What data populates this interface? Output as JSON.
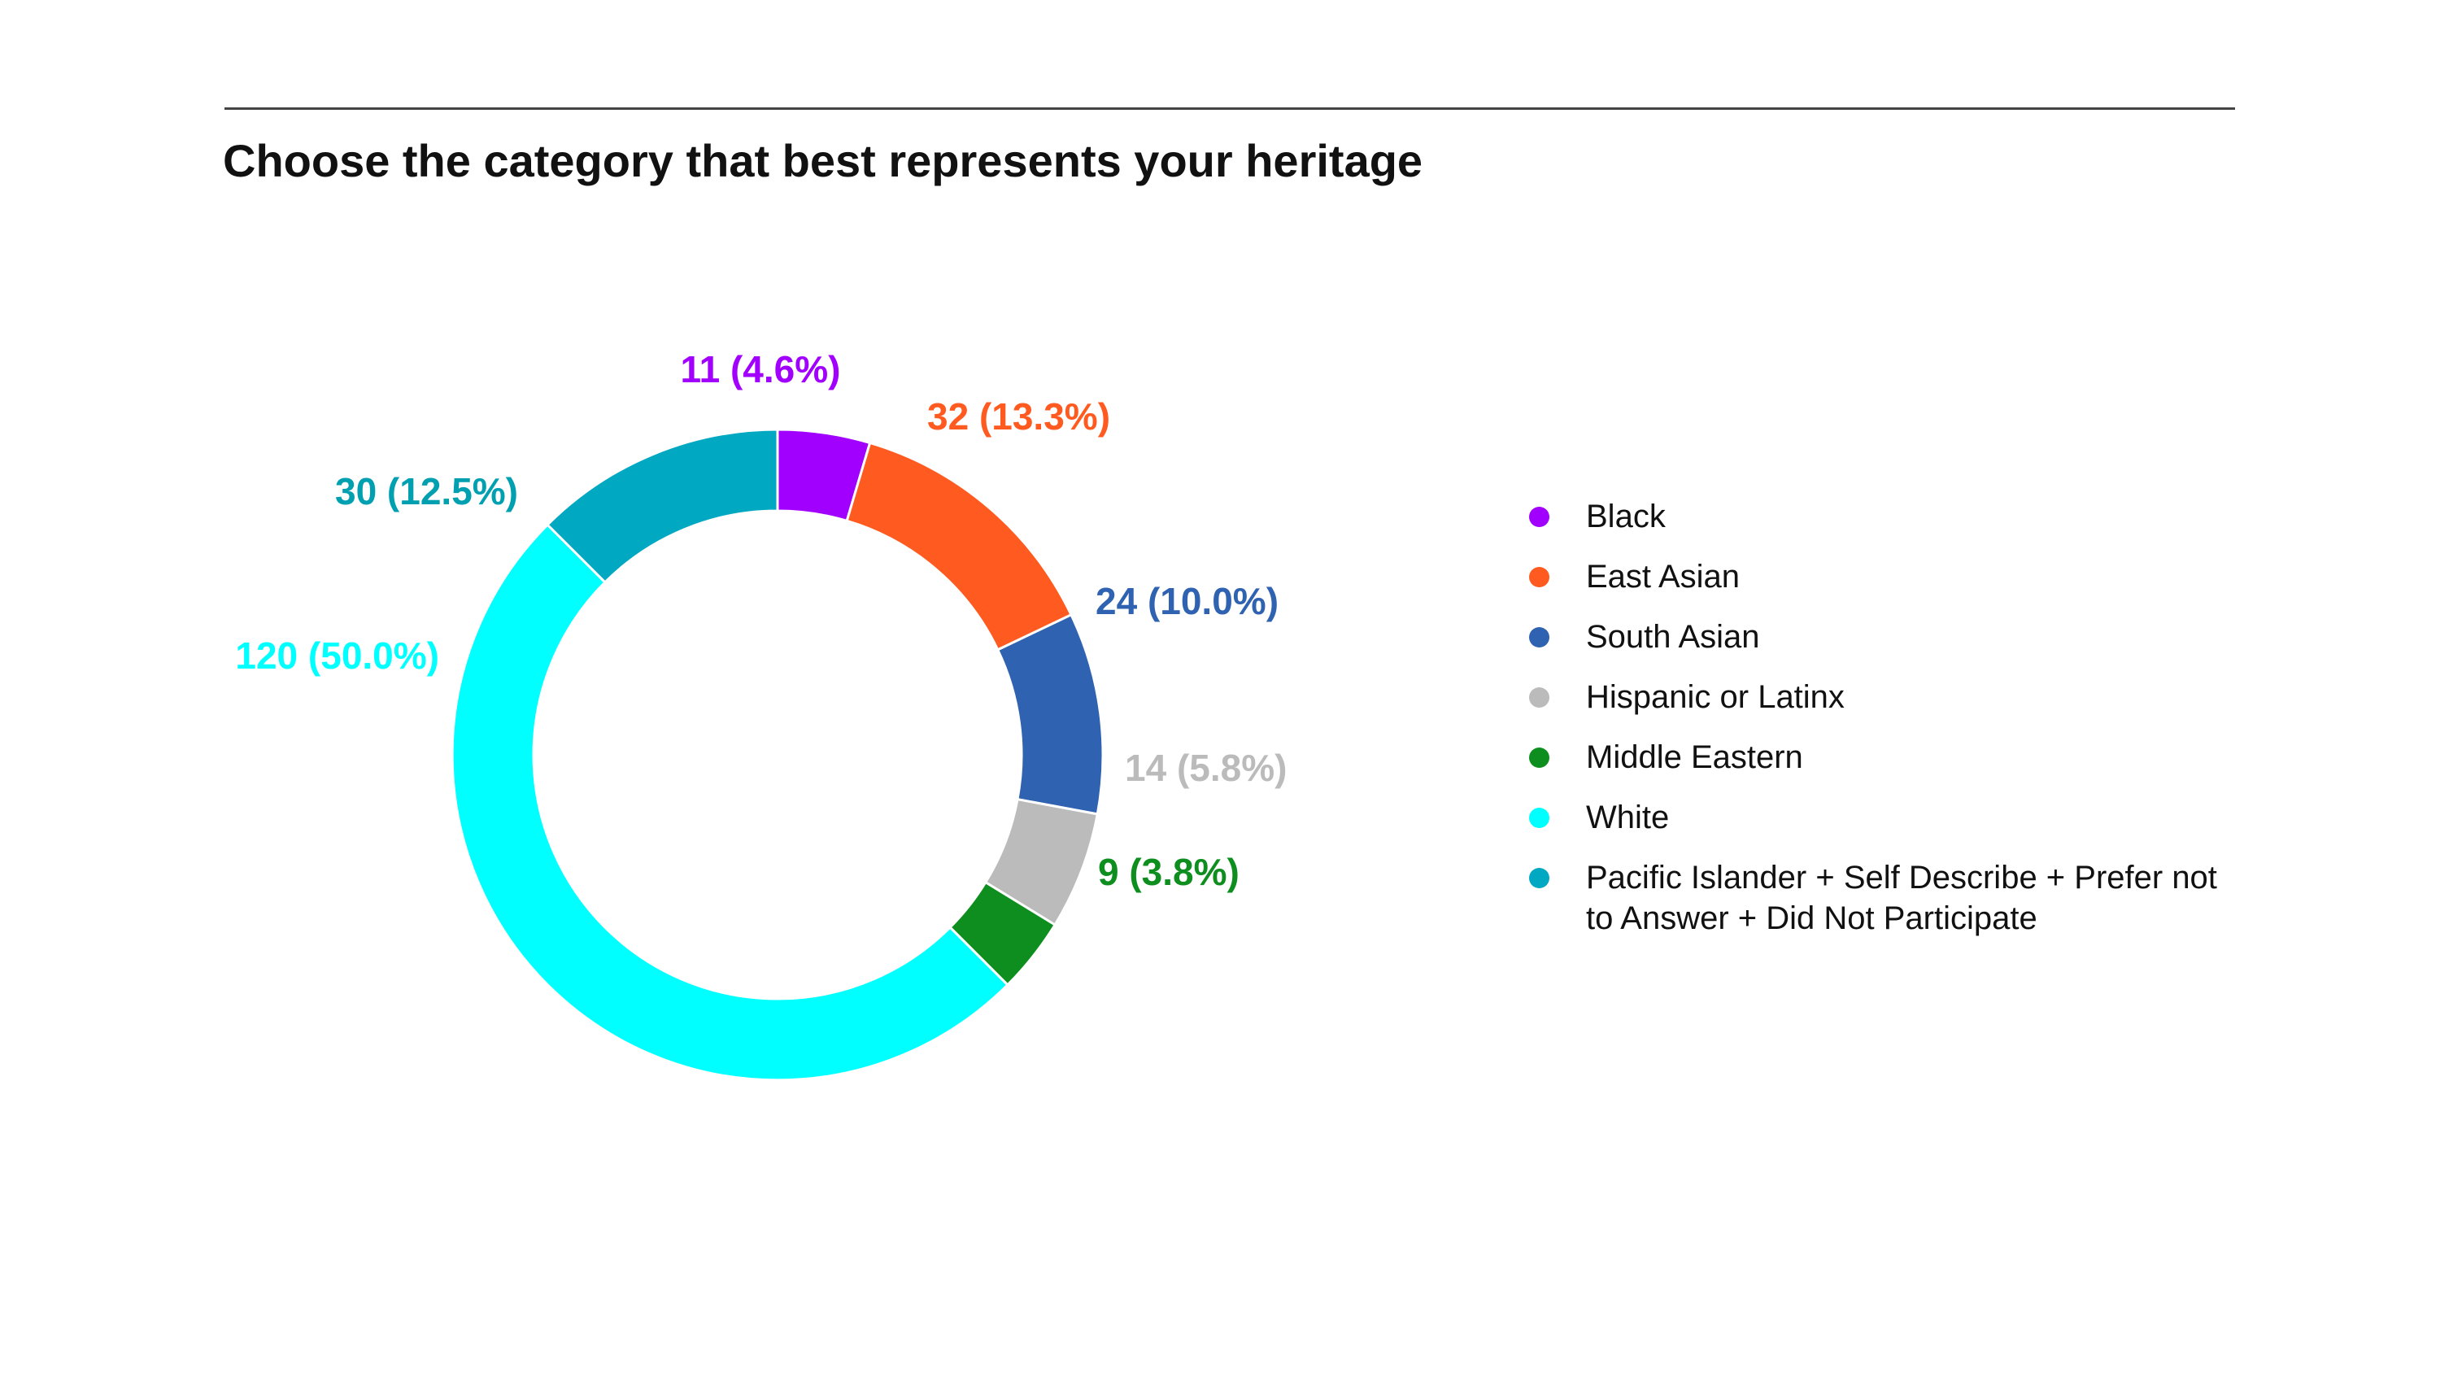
{
  "title": "Choose the category that best represents your heritage",
  "chart_data": {
    "type": "pie",
    "subtype": "donut",
    "legend_position": "right",
    "categories": [
      "Black",
      "East Asian",
      "South Asian",
      "Hispanic or Latinx",
      "Middle Eastern",
      "White",
      "Pacific Islander + Self Describe + Prefer not to Answer + Did Not Participate"
    ],
    "values": [
      11,
      32,
      24,
      14,
      9,
      120,
      30
    ],
    "data_labels": [
      "11 (4.6%)",
      "32 (13.3%)",
      "24 (10.0%)",
      "14 (5.8%)",
      "9 (3.8%)",
      "120 (50.0%)",
      "30 (12.5%)"
    ],
    "colors": [
      "#A100FF",
      "#FF5A1F",
      "#2F62B0",
      "#BBBBBB",
      "#0E8E1E",
      "#00FFFF",
      "#00A8C2"
    ],
    "label_colors": [
      "#A100FF",
      "#FF5A1F",
      "#2F62B0",
      "#BBBBBB",
      "#0E8E1E",
      "#00FFFF",
      "#00A0B0"
    ]
  }
}
